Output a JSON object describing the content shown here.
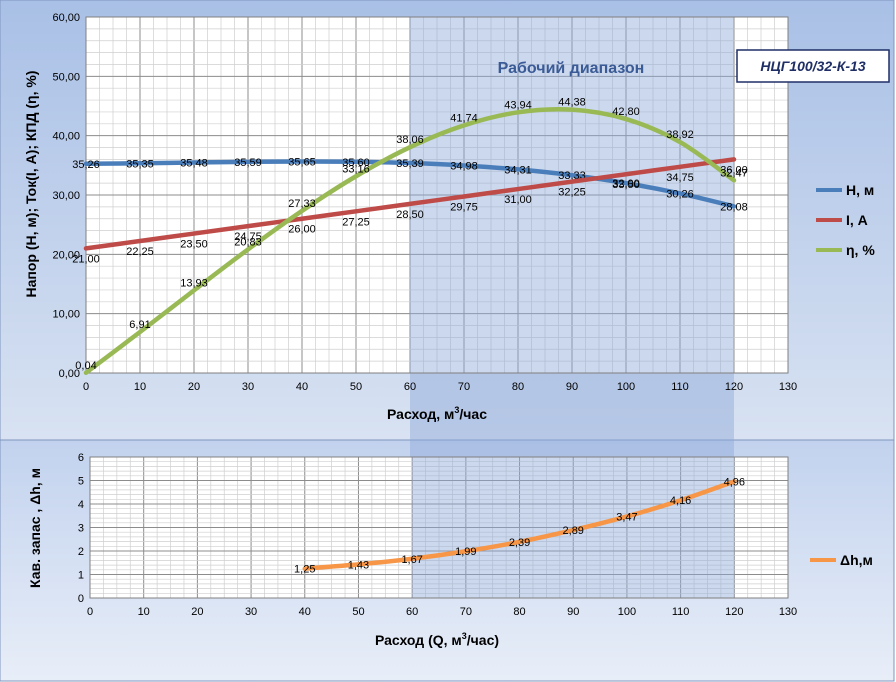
{
  "model_label": "НЦГ100/32-К-13",
  "range_label": "Рабочий диапазон",
  "colors": {
    "H": "#4a7ebb",
    "I": "#be4b48",
    "eff": "#98b954",
    "npsh": "#f79646",
    "band": "#8fa8d8",
    "bg_top": "#a9c0e6",
    "bg_bottom": "#d8e2f2",
    "model_border": "#1f2f66"
  },
  "chart_data": [
    {
      "type": "line",
      "xlabel_main": "Расход, м",
      "xlabel_sup": "3",
      "xlabel_tail": "/час",
      "ylabel": "Напор (Н, м); Ток(I, А); КПД (η, %)",
      "xlim": [
        0,
        130
      ],
      "ylim": [
        0,
        60
      ],
      "x_ticks": [
        0,
        10,
        20,
        30,
        40,
        50,
        60,
        70,
        80,
        90,
        100,
        110,
        120,
        130
      ],
      "x_tick_labels": [
        "0",
        "10",
        "20",
        "30",
        "40",
        "50",
        "60",
        "70",
        "80",
        "90",
        "100",
        "110",
        "120",
        "130"
      ],
      "y_ticks": [
        0,
        10,
        20,
        30,
        40,
        50,
        60
      ],
      "y_tick_labels": [
        "0,00",
        "10,00",
        "20,00",
        "30,00",
        "40,00",
        "50,00",
        "60,00"
      ],
      "grid": true,
      "legend_position": "right",
      "highlight_range": [
        60,
        120
      ],
      "series": [
        {
          "key": "H",
          "name": "Н, м",
          "x": [
            0,
            10,
            20,
            30,
            40,
            50,
            60,
            70,
            80,
            90,
            100,
            110,
            120
          ],
          "values": [
            35.26,
            35.35,
            35.48,
            35.59,
            35.65,
            35.6,
            35.39,
            34.98,
            34.31,
            33.33,
            32.0,
            30.26,
            28.08
          ],
          "labels": [
            "35,26",
            "35,35",
            "35,48",
            "35,59",
            "35,65",
            "35,60",
            "35,39",
            "34,98",
            "34,31",
            "33,33",
            "32,00",
            "30,26",
            "28,08"
          ]
        },
        {
          "key": "I",
          "name": "I, А",
          "x": [
            0,
            10,
            20,
            30,
            40,
            50,
            60,
            70,
            80,
            90,
            100,
            110,
            120
          ],
          "values": [
            21.0,
            22.25,
            23.5,
            24.75,
            26.0,
            27.25,
            28.5,
            29.75,
            31.0,
            32.25,
            33.5,
            34.75,
            36.0
          ],
          "labels": [
            "21,00",
            "22,25",
            "23,50",
            "24,75",
            "26,00",
            "27,25",
            "28,50",
            "29,75",
            "31,00",
            "32,25",
            "33,50",
            "34,75",
            "36,00"
          ]
        },
        {
          "key": "eff",
          "name": "η, %",
          "x": [
            0,
            10,
            20,
            30,
            40,
            50,
            60,
            70,
            80,
            90,
            100,
            110,
            120
          ],
          "values": [
            0.04,
            6.91,
            13.93,
            20.83,
            27.33,
            33.16,
            38.06,
            41.74,
            43.94,
            44.38,
            42.8,
            38.92,
            32.47
          ],
          "labels": [
            "0,04",
            "6,91",
            "13,93",
            "20,83",
            "27,33",
            "33,16",
            "38,06",
            "41,74",
            "43,94",
            "44,38",
            "42,80",
            "38,92",
            "32,47"
          ]
        }
      ]
    },
    {
      "type": "line",
      "xlabel_main": "Расход  (Q, м",
      "xlabel_sup": "3",
      "xlabel_tail": "/час)",
      "ylabel": "Кав. запас , Δh, м",
      "xlim": [
        0,
        130
      ],
      "ylim": [
        0,
        6
      ],
      "x_ticks": [
        0,
        10,
        20,
        30,
        40,
        50,
        60,
        70,
        80,
        90,
        100,
        110,
        120,
        130
      ],
      "x_tick_labels": [
        "0",
        "10",
        "20",
        "30",
        "40",
        "50",
        "60",
        "70",
        "80",
        "90",
        "100",
        "110",
        "120",
        "130"
      ],
      "y_ticks": [
        0,
        1,
        2,
        3,
        4,
        5,
        6
      ],
      "y_tick_labels": [
        "0",
        "1",
        "2",
        "3",
        "4",
        "5",
        "6"
      ],
      "grid": true,
      "legend_position": "right",
      "highlight_range": [
        60,
        120
      ],
      "series": [
        {
          "key": "npsh",
          "name": "Δh,м",
          "x": [
            40,
            50,
            60,
            70,
            80,
            90,
            100,
            110,
            120
          ],
          "values": [
            1.25,
            1.43,
            1.67,
            1.99,
            2.39,
            2.89,
            3.47,
            4.16,
            4.96
          ],
          "labels": [
            "1,25",
            "1,43",
            "1,67",
            "1,99",
            "2,39",
            "2,89",
            "3,47",
            "4,16",
            "4,96"
          ]
        }
      ]
    }
  ]
}
